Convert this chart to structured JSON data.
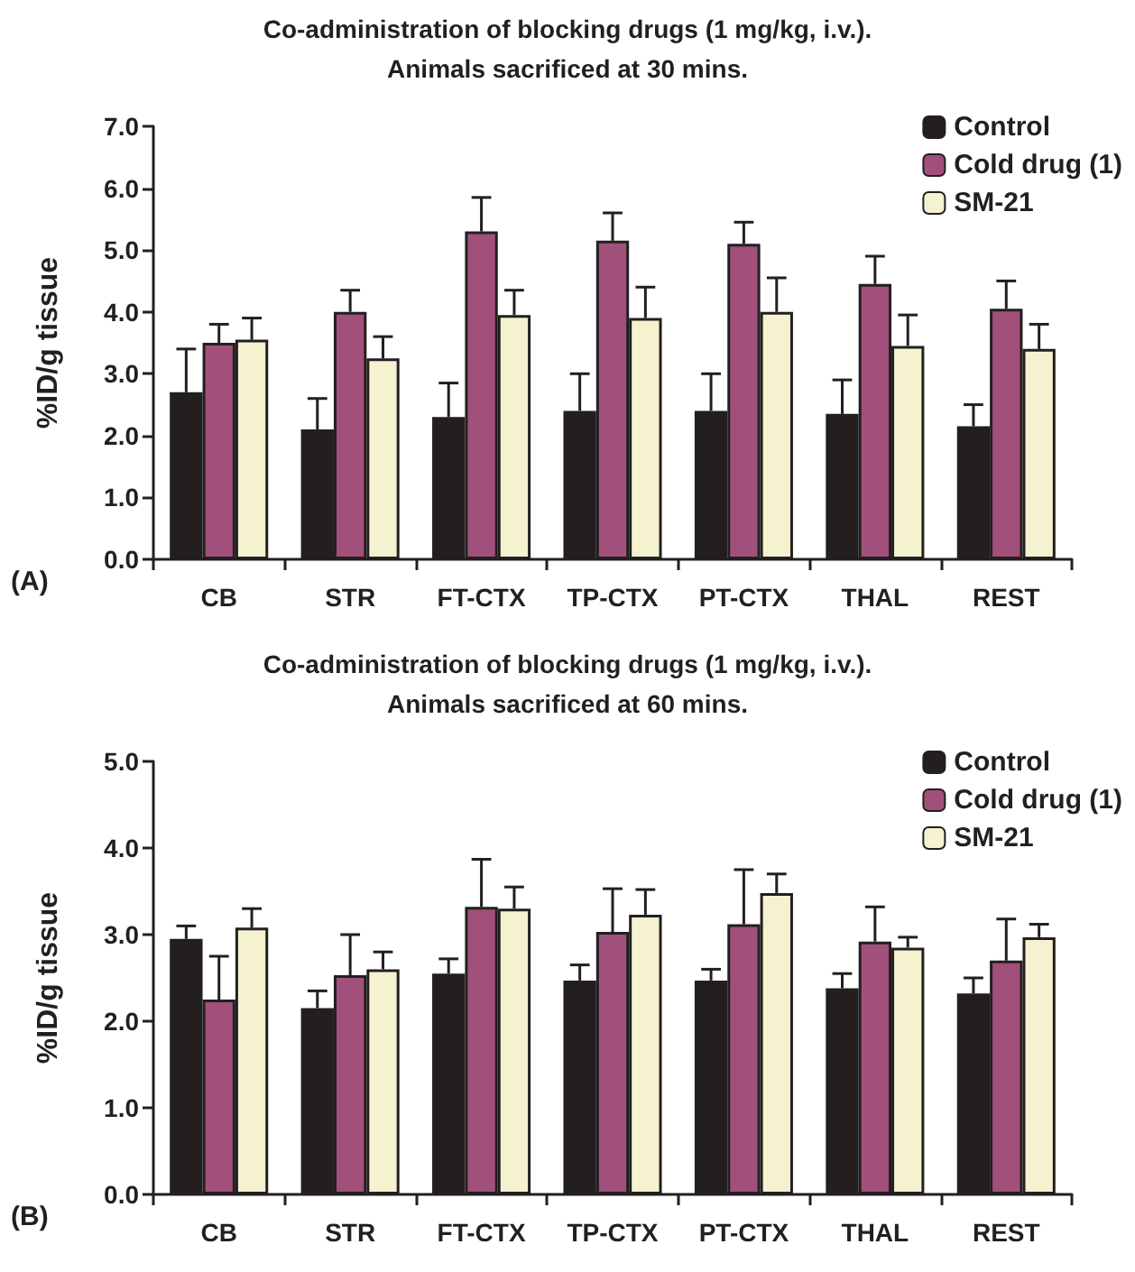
{
  "chart_data": [
    {
      "type": "bar",
      "title": "Co-administration of blocking drugs (1 mg/kg, i.v.).",
      "subtitle": "Animals sacrificed at 30 mins.",
      "ylabel": "%ID/g tissue",
      "annotations": [
        "(A)"
      ],
      "categories": [
        "CB",
        "STR",
        "FT-CTX",
        "TP-CTX",
        "PT-CTX",
        "THAL",
        "REST"
      ],
      "series": [
        {
          "name": "Control",
          "color": "#231f20",
          "values": [
            2.7,
            2.1,
            2.3,
            2.4,
            2.4,
            2.35,
            2.15
          ],
          "errors": [
            [
              2.7,
              3.4
            ],
            [
              2.1,
              2.6
            ],
            [
              2.3,
              2.85
            ],
            [
              2.4,
              3.0
            ],
            [
              2.4,
              3.0
            ],
            [
              2.35,
              2.9
            ],
            [
              2.15,
              2.5
            ]
          ]
        },
        {
          "name": "Cold drug (1)",
          "color": "#a0507a",
          "values": [
            3.5,
            4.0,
            5.3,
            5.15,
            5.1,
            4.45,
            4.05
          ],
          "errors": [
            [
              3.5,
              3.8
            ],
            [
              4.0,
              4.35
            ],
            [
              5.3,
              5.85
            ],
            [
              5.15,
              5.6
            ],
            [
              5.1,
              5.45
            ],
            [
              4.45,
              4.9
            ],
            [
              4.05,
              4.5
            ]
          ]
        },
        {
          "name": "SM-21",
          "color": "#f5f2d0",
          "values": [
            3.55,
            3.25,
            3.95,
            3.9,
            4.0,
            3.45,
            3.4
          ],
          "errors": [
            [
              3.55,
              3.9
            ],
            [
              3.25,
              3.6
            ],
            [
              3.95,
              4.35
            ],
            [
              3.9,
              4.4
            ],
            [
              4.0,
              4.55
            ],
            [
              3.45,
              3.95
            ],
            [
              3.4,
              3.8
            ]
          ]
        }
      ],
      "ylim": [
        0,
        7
      ],
      "yticks": [
        {
          "value": 0,
          "label": "0.0"
        },
        {
          "value": 1,
          "label": "1.0"
        },
        {
          "value": 2,
          "label": "2.0"
        },
        {
          "value": 3,
          "label": "3.0"
        },
        {
          "value": 4,
          "label": "4.0"
        },
        {
          "value": 5,
          "label": "5.0"
        },
        {
          "value": 6,
          "label": "6.0"
        },
        {
          "value": 7,
          "label": "7.0"
        }
      ],
      "grid": false,
      "legend": "top right"
    },
    {
      "type": "bar",
      "title": "Co-administration of blocking drugs (1 mg/kg, i.v.).",
      "subtitle": "Animals sacrificed at 60 mins.",
      "ylabel": "%ID/g tissue",
      "annotations": [
        "(B)"
      ],
      "categories": [
        "CB",
        "STR",
        "FT-CTX",
        "TP-CTX",
        "PT-CTX",
        "THAL",
        "REST"
      ],
      "series": [
        {
          "name": "Control",
          "color": "#231f20",
          "values": [
            2.95,
            2.15,
            2.55,
            2.47,
            2.47,
            2.38,
            2.32
          ],
          "errors": [
            [
              2.95,
              3.1
            ],
            [
              2.15,
              2.35
            ],
            [
              2.55,
              2.72
            ],
            [
              2.47,
              2.65
            ],
            [
              2.47,
              2.6
            ],
            [
              2.38,
              2.55
            ],
            [
              2.32,
              2.5
            ]
          ]
        },
        {
          "name": "Cold drug (1)",
          "color": "#a0507a",
          "values": [
            2.25,
            2.53,
            3.32,
            3.03,
            3.12,
            2.92,
            2.7
          ],
          "errors": [
            [
              2.25,
              2.75
            ],
            [
              2.53,
              3.0
            ],
            [
              3.32,
              3.87
            ],
            [
              3.03,
              3.53
            ],
            [
              3.12,
              3.75
            ],
            [
              2.92,
              3.32
            ],
            [
              2.7,
              3.18
            ]
          ]
        },
        {
          "name": "SM-21",
          "color": "#f5f2d0",
          "values": [
            3.08,
            2.6,
            3.3,
            3.23,
            3.48,
            2.85,
            2.97
          ],
          "errors": [
            [
              3.08,
              3.3
            ],
            [
              2.6,
              2.8
            ],
            [
              3.3,
              3.55
            ],
            [
              3.23,
              3.52
            ],
            [
              3.48,
              3.7
            ],
            [
              2.85,
              2.97
            ],
            [
              2.97,
              3.12
            ]
          ]
        }
      ],
      "ylim": [
        0,
        5
      ],
      "yticks": [
        {
          "value": 0,
          "label": "0.0"
        },
        {
          "value": 1,
          "label": "1.0"
        },
        {
          "value": 2,
          "label": "2.0"
        },
        {
          "value": 3,
          "label": "3.0"
        },
        {
          "value": 4,
          "label": "4.0"
        },
        {
          "value": 5,
          "label": "5.0"
        }
      ],
      "grid": false,
      "legend": "top right"
    }
  ]
}
